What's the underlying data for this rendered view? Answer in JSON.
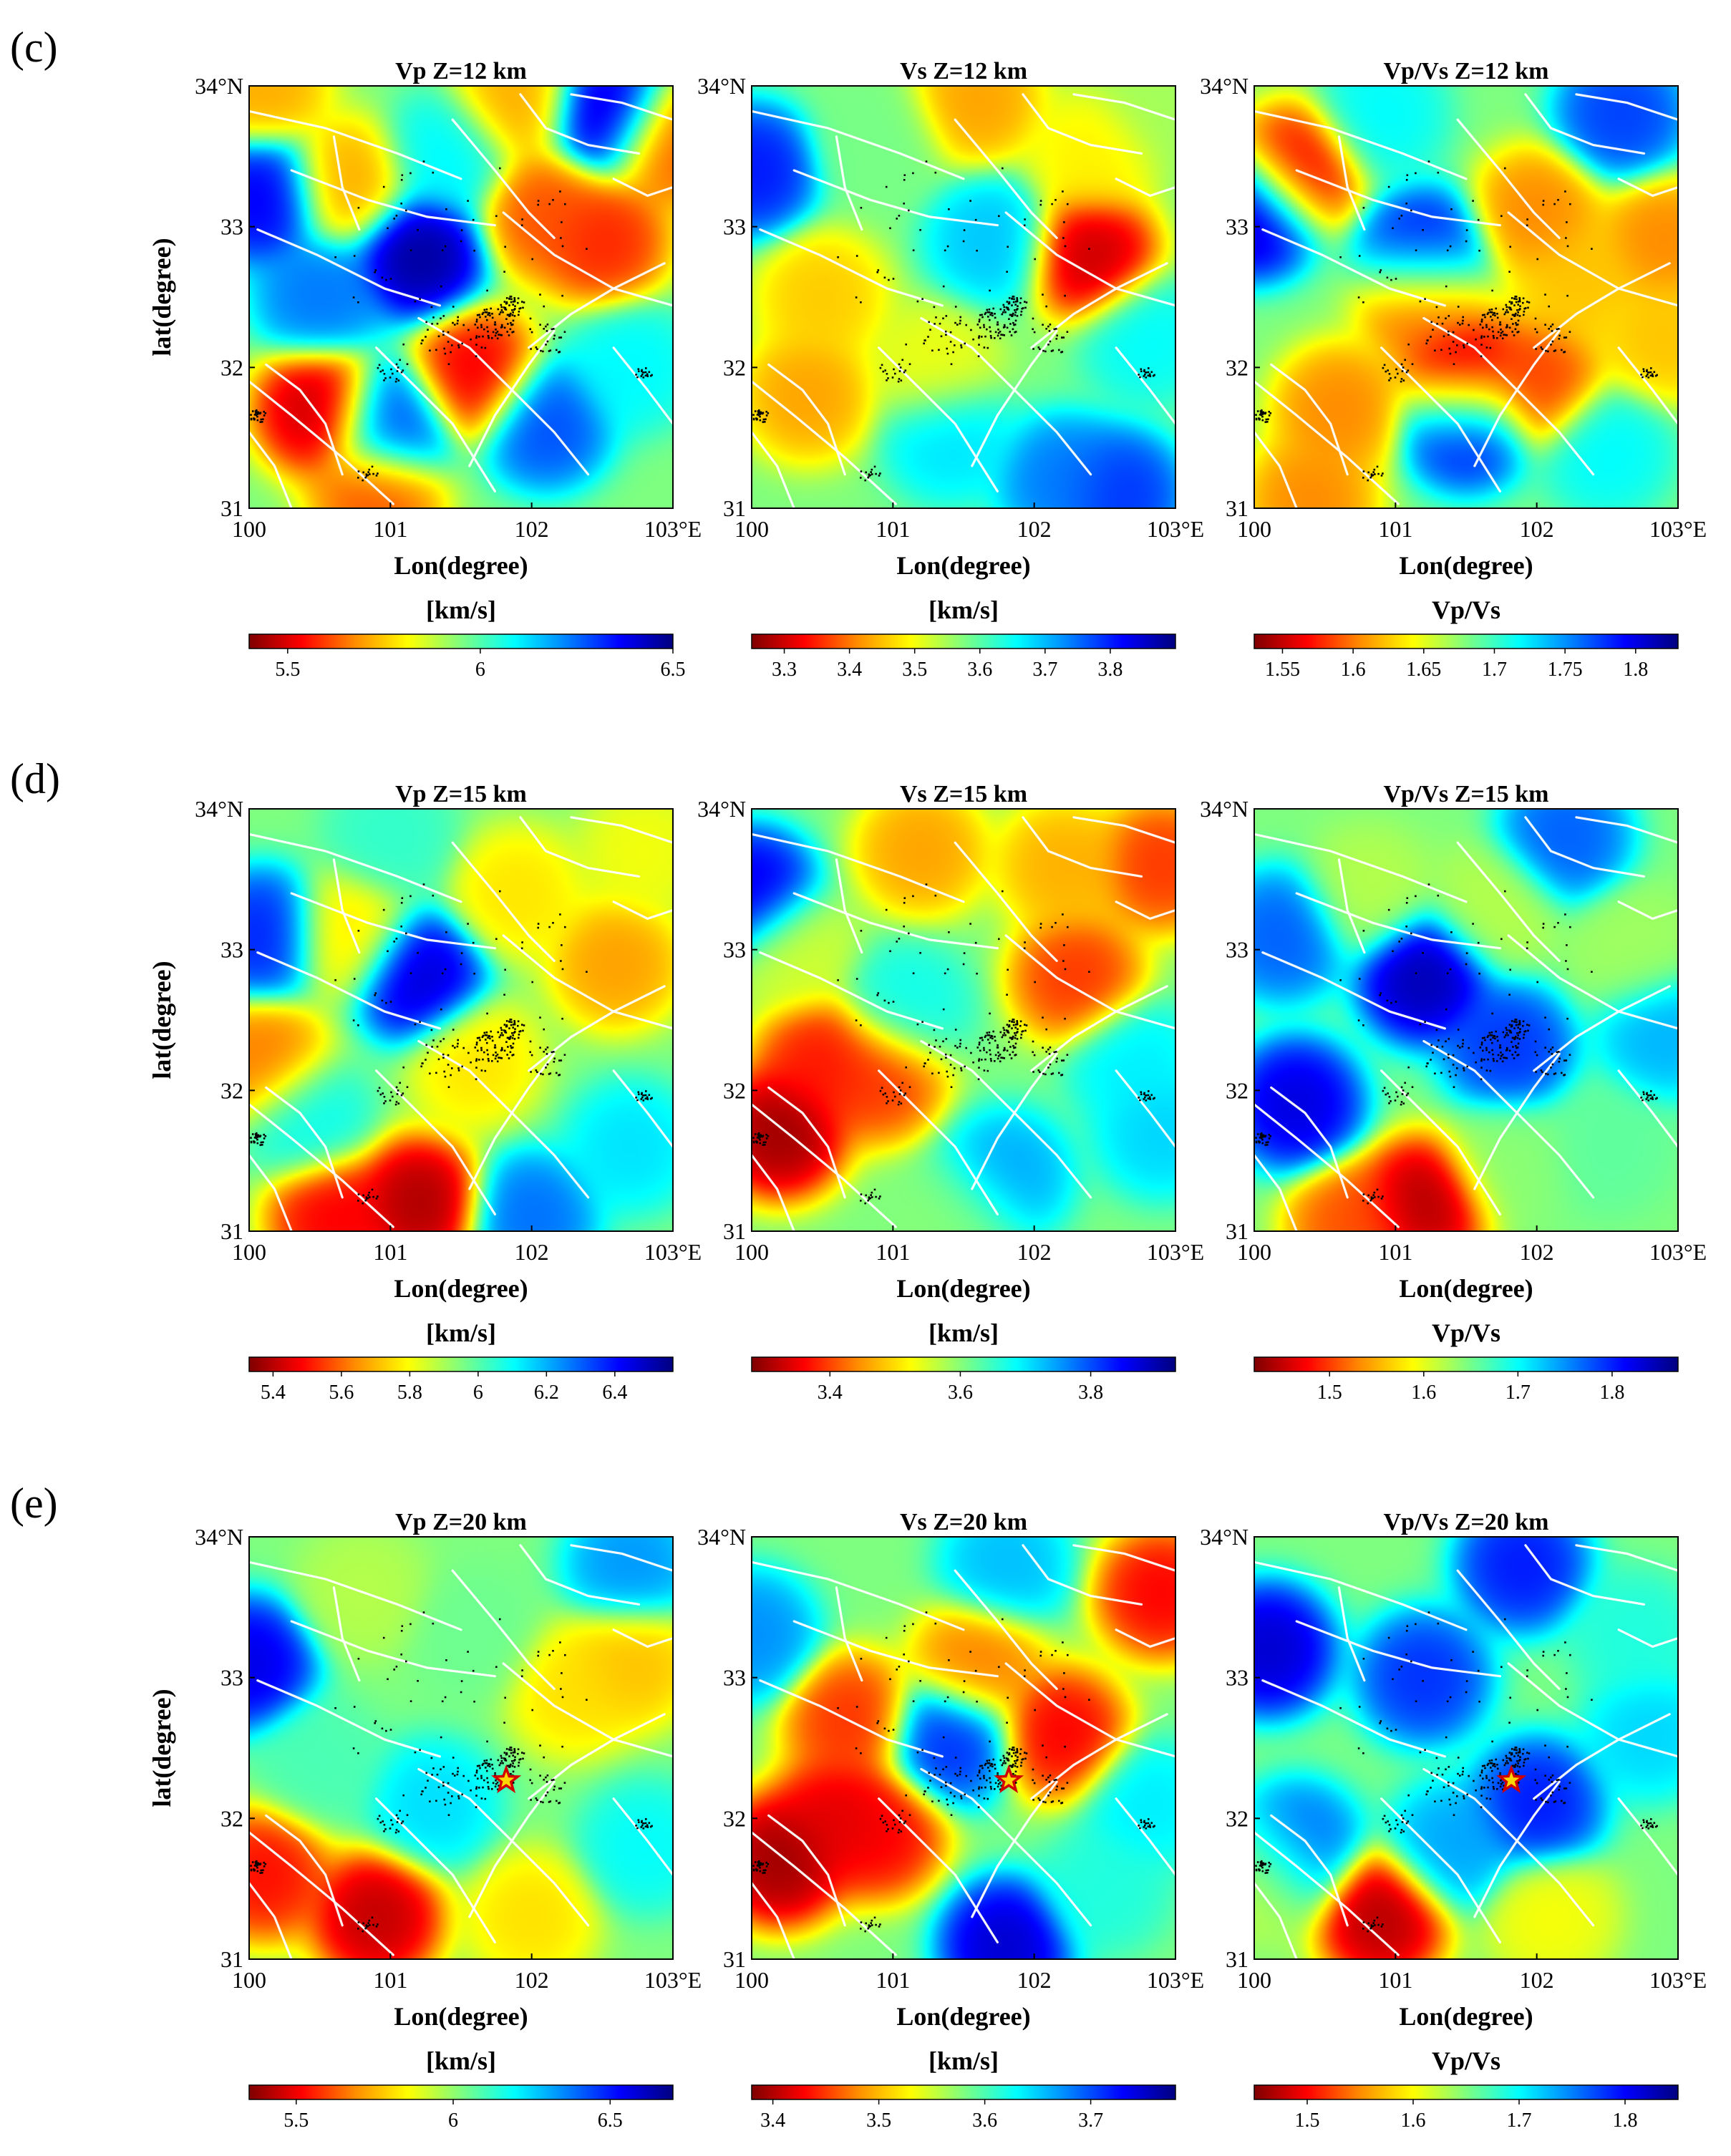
{
  "figure": {
    "panel_letters": [
      "(c)",
      "(d)",
      "(e)"
    ]
  },
  "colors": {
    "fault_lines": "#ffffff",
    "events": "#000000",
    "star_fill": "#ffd700",
    "star_stroke": "#d10000",
    "colormap": [
      "#7f0000",
      "#ff0000",
      "#ff8c00",
      "#ffff00",
      "#7fff7f",
      "#00ffff",
      "#0080ff",
      "#0000ff",
      "#00007f"
    ]
  },
  "chart_data": [
    {
      "type": "heatmap",
      "row": "c",
      "title": "Vp Z=12 km",
      "xlabel": "Lon(degree)",
      "ylabel": "lat(degree)",
      "xlim": [
        100,
        103
      ],
      "ylim": [
        31,
        34
      ],
      "xticks": [
        "100",
        "101",
        "102",
        "103°E"
      ],
      "yticks": [
        "31",
        "32",
        "33",
        "34°N"
      ],
      "colorbar": {
        "label": "[km/s]",
        "min": 5.4,
        "max": 6.5,
        "ticks": [
          "5.5",
          "6",
          "6.5"
        ],
        "tick_values": [
          5.5,
          6.0,
          6.5
        ]
      },
      "star": null,
      "anomalies": [
        {
          "lon": 101.2,
          "lat": 32.8,
          "value": 6.5
        },
        {
          "lon": 100.1,
          "lat": 33.2,
          "value": 6.4
        },
        {
          "lon": 102.5,
          "lat": 32.9,
          "value": 5.55
        },
        {
          "lon": 102.1,
          "lat": 33.1,
          "value": 5.6
        },
        {
          "lon": 101.6,
          "lat": 31.95,
          "value": 5.5
        },
        {
          "lon": 100.5,
          "lat": 31.7,
          "value": 5.45
        },
        {
          "lon": 102.55,
          "lat": 33.8,
          "value": 6.45
        },
        {
          "lon": 101.0,
          "lat": 31.6,
          "value": 6.3
        },
        {
          "lon": 102.1,
          "lat": 31.6,
          "value": 6.3
        },
        {
          "lon": 100.7,
          "lat": 33.3,
          "value": 5.7
        },
        {
          "lon": 102.95,
          "lat": 33.6,
          "value": 5.6
        },
        {
          "lon": 101.9,
          "lat": 33.9,
          "value": 5.7
        },
        {
          "lon": 100.1,
          "lat": 34.0,
          "value": 5.7
        },
        {
          "lon": 102.7,
          "lat": 32.0,
          "value": 6.1
        },
        {
          "lon": 100.5,
          "lat": 32.5,
          "value": 6.25
        },
        {
          "lon": 101.4,
          "lat": 33.5,
          "value": 6.1
        },
        {
          "lon": 100.9,
          "lat": 31.1,
          "value": 5.6
        }
      ]
    },
    {
      "type": "heatmap",
      "row": "c",
      "title": "Vs Z=12 km",
      "xlabel": "Lon(degree)",
      "ylabel": "",
      "xlim": [
        100,
        103
      ],
      "ylim": [
        31,
        34
      ],
      "xticks": [
        "100",
        "101",
        "102",
        "103°E"
      ],
      "yticks": [
        "31",
        "32",
        "33",
        "34°N"
      ],
      "colorbar": {
        "label": "[km/s]",
        "min": 3.25,
        "max": 3.9,
        "ticks": [
          "3.3",
          "3.4",
          "3.5",
          "3.6",
          "3.7",
          "3.8"
        ],
        "tick_values": [
          3.3,
          3.4,
          3.5,
          3.6,
          3.7,
          3.8
        ]
      },
      "star": null,
      "anomalies": [
        {
          "lon": 102.4,
          "lat": 32.8,
          "value": 3.28
        },
        {
          "lon": 100.0,
          "lat": 33.4,
          "value": 3.82
        },
        {
          "lon": 100.4,
          "lat": 31.8,
          "value": 3.42
        },
        {
          "lon": 100.5,
          "lat": 32.5,
          "value": 3.45
        },
        {
          "lon": 101.3,
          "lat": 32.0,
          "value": 3.5
        },
        {
          "lon": 101.6,
          "lat": 33.9,
          "value": 3.42
        },
        {
          "lon": 102.4,
          "lat": 33.5,
          "value": 3.48
        },
        {
          "lon": 101.7,
          "lat": 32.9,
          "value": 3.7
        },
        {
          "lon": 102.2,
          "lat": 31.2,
          "value": 3.75
        },
        {
          "lon": 101.4,
          "lat": 31.5,
          "value": 3.68
        },
        {
          "lon": 102.8,
          "lat": 32.2,
          "value": 3.66
        },
        {
          "lon": 102.6,
          "lat": 31.1,
          "value": 3.8
        },
        {
          "lon": 100.9,
          "lat": 33.6,
          "value": 3.58
        },
        {
          "lon": 102.9,
          "lat": 33.9,
          "value": 3.55
        }
      ]
    },
    {
      "type": "heatmap",
      "row": "c",
      "title": "Vp/Vs Z=12 km",
      "xlabel": "Lon(degree)",
      "ylabel": "",
      "xlim": [
        100,
        103
      ],
      "ylim": [
        31,
        34
      ],
      "xticks": [
        "100",
        "101",
        "102",
        "103°E"
      ],
      "yticks": [
        "31",
        "32",
        "33",
        "34°N"
      ],
      "colorbar": {
        "label": "Vp/Vs",
        "min": 1.53,
        "max": 1.83,
        "ticks": [
          "1.55",
          "1.6",
          "1.65",
          "1.7",
          "1.75",
          "1.8"
        ],
        "tick_values": [
          1.55,
          1.6,
          1.65,
          1.7,
          1.75,
          1.8
        ]
      },
      "star": null,
      "anomalies": [
        {
          "lon": 100.0,
          "lat": 33.1,
          "value": 1.82
        },
        {
          "lon": 101.2,
          "lat": 32.8,
          "value": 1.8
        },
        {
          "lon": 101.5,
          "lat": 31.6,
          "value": 1.8
        },
        {
          "lon": 102.6,
          "lat": 33.8,
          "value": 1.78
        },
        {
          "lon": 100.3,
          "lat": 33.4,
          "value": 1.56
        },
        {
          "lon": 101.5,
          "lat": 31.9,
          "value": 1.54
        },
        {
          "lon": 101.2,
          "lat": 32.5,
          "value": 1.58
        },
        {
          "lon": 102.0,
          "lat": 33.1,
          "value": 1.6
        },
        {
          "lon": 102.9,
          "lat": 32.9,
          "value": 1.6
        },
        {
          "lon": 102.0,
          "lat": 31.9,
          "value": 1.58
        },
        {
          "lon": 100.6,
          "lat": 31.7,
          "value": 1.6
        },
        {
          "lon": 100.4,
          "lat": 31.05,
          "value": 1.6
        },
        {
          "lon": 102.9,
          "lat": 32.2,
          "value": 1.62
        },
        {
          "lon": 102.3,
          "lat": 32.6,
          "value": 1.62
        },
        {
          "lon": 100.9,
          "lat": 33.8,
          "value": 1.72
        },
        {
          "lon": 102.5,
          "lat": 31.4,
          "value": 1.72
        }
      ]
    },
    {
      "type": "heatmap",
      "row": "d",
      "title": "Vp Z=15 km",
      "xlabel": "Lon(degree)",
      "ylabel": "lat(degree)",
      "xlim": [
        100,
        103
      ],
      "ylim": [
        31,
        34
      ],
      "xticks": [
        "100",
        "101",
        "102",
        "103°E"
      ],
      "yticks": [
        "31",
        "32",
        "33",
        "34°N"
      ],
      "colorbar": {
        "label": "[km/s]",
        "min": 5.33,
        "max": 6.57,
        "ticks": [
          "5.4",
          "5.6",
          "5.8",
          "6",
          "6.2",
          "6.4"
        ],
        "tick_values": [
          5.4,
          5.6,
          5.8,
          6.0,
          6.2,
          6.4
        ]
      },
      "star": null,
      "anomalies": [
        {
          "lon": 101.2,
          "lat": 32.8,
          "value": 6.5
        },
        {
          "lon": 100.1,
          "lat": 33.1,
          "value": 6.4
        },
        {
          "lon": 101.2,
          "lat": 31.2,
          "value": 5.35
        },
        {
          "lon": 100.6,
          "lat": 31.1,
          "value": 5.45
        },
        {
          "lon": 100.1,
          "lat": 32.2,
          "value": 5.6
        },
        {
          "lon": 102.6,
          "lat": 32.9,
          "value": 5.65
        },
        {
          "lon": 101.6,
          "lat": 32.2,
          "value": 5.75
        },
        {
          "lon": 101.9,
          "lat": 33.4,
          "value": 5.75
        },
        {
          "lon": 102.0,
          "lat": 31.1,
          "value": 6.3
        },
        {
          "lon": 100.4,
          "lat": 31.8,
          "value": 6.1
        },
        {
          "lon": 102.7,
          "lat": 31.6,
          "value": 6.15
        },
        {
          "lon": 101.0,
          "lat": 33.8,
          "value": 6.05
        },
        {
          "lon": 102.8,
          "lat": 33.7,
          "value": 5.8
        },
        {
          "lon": 100.7,
          "lat": 33.1,
          "value": 5.75
        }
      ]
    },
    {
      "type": "heatmap",
      "row": "d",
      "title": "Vs Z=15 km",
      "xlabel": "Lon(degree)",
      "ylabel": "",
      "xlim": [
        100,
        103
      ],
      "ylim": [
        31,
        34
      ],
      "xticks": [
        "100",
        "101",
        "102",
        "103°E"
      ],
      "yticks": [
        "31",
        "32",
        "33",
        "34°N"
      ],
      "colorbar": {
        "label": "[km/s]",
        "min": 3.28,
        "max": 3.93,
        "ticks": [
          "3.4",
          "3.6",
          "3.8"
        ],
        "tick_values": [
          3.4,
          3.6,
          3.8
        ]
      },
      "star": null,
      "anomalies": [
        {
          "lon": 100.2,
          "lat": 31.7,
          "value": 3.28
        },
        {
          "lon": 100.5,
          "lat": 32.2,
          "value": 3.36
        },
        {
          "lon": 100.9,
          "lat": 32.1,
          "value": 3.38
        },
        {
          "lon": 102.3,
          "lat": 32.8,
          "value": 3.38
        },
        {
          "lon": 102.9,
          "lat": 33.6,
          "value": 3.38
        },
        {
          "lon": 101.2,
          "lat": 33.7,
          "value": 3.45
        },
        {
          "lon": 102.2,
          "lat": 33.6,
          "value": 3.46
        },
        {
          "lon": 100.0,
          "lat": 33.4,
          "value": 3.88
        },
        {
          "lon": 101.8,
          "lat": 31.4,
          "value": 3.75
        },
        {
          "lon": 102.9,
          "lat": 31.7,
          "value": 3.72
        },
        {
          "lon": 101.1,
          "lat": 32.6,
          "value": 3.68
        },
        {
          "lon": 102.7,
          "lat": 32.2,
          "value": 3.7
        },
        {
          "lon": 101.5,
          "lat": 31.1,
          "value": 3.6
        },
        {
          "lon": 100.3,
          "lat": 33.0,
          "value": 3.55
        }
      ]
    },
    {
      "type": "heatmap",
      "row": "d",
      "title": "Vp/Vs Z=15 km",
      "xlabel": "Lon(degree)",
      "ylabel": "",
      "xlim": [
        100,
        103
      ],
      "ylim": [
        31,
        34
      ],
      "xticks": [
        "100",
        "101",
        "102",
        "103°E"
      ],
      "yticks": [
        "31",
        "32",
        "33",
        "34°N"
      ],
      "colorbar": {
        "label": "Vp/Vs",
        "min": 1.42,
        "max": 1.87,
        "ticks": [
          "1.5",
          "1.6",
          "1.7",
          "1.8"
        ],
        "tick_values": [
          1.5,
          1.6,
          1.7,
          1.8
        ]
      },
      "star": null,
      "anomalies": [
        {
          "lon": 101.2,
          "lat": 31.2,
          "value": 1.43
        },
        {
          "lon": 100.7,
          "lat": 31.05,
          "value": 1.5
        },
        {
          "lon": 101.2,
          "lat": 32.8,
          "value": 1.86
        },
        {
          "lon": 100.3,
          "lat": 31.9,
          "value": 1.84
        },
        {
          "lon": 100.2,
          "lat": 33.1,
          "value": 1.78
        },
        {
          "lon": 101.8,
          "lat": 32.3,
          "value": 1.8
        },
        {
          "lon": 102.2,
          "lat": 33.8,
          "value": 1.78
        },
        {
          "lon": 100.8,
          "lat": 33.4,
          "value": 1.62
        },
        {
          "lon": 101.7,
          "lat": 33.3,
          "value": 1.62
        },
        {
          "lon": 102.7,
          "lat": 33.0,
          "value": 1.63
        },
        {
          "lon": 101.8,
          "lat": 31.5,
          "value": 1.64
        },
        {
          "lon": 102.5,
          "lat": 31.6,
          "value": 1.66
        },
        {
          "lon": 102.9,
          "lat": 32.4,
          "value": 1.74
        }
      ]
    },
    {
      "type": "heatmap",
      "row": "e",
      "title": "Vp Z=20 km",
      "xlabel": "Lon(degree)",
      "ylabel": "lat(degree)",
      "xlim": [
        100,
        103
      ],
      "ylim": [
        31,
        34
      ],
      "xticks": [
        "100",
        "101",
        "102",
        "103°E"
      ],
      "yticks": [
        "31",
        "32",
        "33",
        "34°N"
      ],
      "colorbar": {
        "label": "[km/s]",
        "min": 5.35,
        "max": 6.7,
        "ticks": [
          "5.5",
          "6",
          "6.5"
        ],
        "tick_values": [
          5.5,
          6.0,
          6.5
        ]
      },
      "star": {
        "lon": 101.82,
        "lat": 32.27,
        "label": ""
      },
      "anomalies": [
        {
          "lon": 100.0,
          "lat": 33.1,
          "value": 6.6
        },
        {
          "lon": 100.9,
          "lat": 31.3,
          "value": 5.4
        },
        {
          "lon": 100.1,
          "lat": 31.6,
          "value": 5.5
        },
        {
          "lon": 102.7,
          "lat": 33.1,
          "value": 5.75
        },
        {
          "lon": 102.3,
          "lat": 32.9,
          "value": 5.8
        },
        {
          "lon": 102.0,
          "lat": 31.3,
          "value": 5.8
        },
        {
          "lon": 102.7,
          "lat": 33.8,
          "value": 6.35
        },
        {
          "lon": 101.3,
          "lat": 32.1,
          "value": 6.25
        },
        {
          "lon": 100.8,
          "lat": 33.6,
          "value": 5.95
        },
        {
          "lon": 102.8,
          "lat": 31.8,
          "value": 6.2
        },
        {
          "lon": 100.5,
          "lat": 32.4,
          "value": 6.1
        },
        {
          "lon": 101.6,
          "lat": 33.3,
          "value": 6.05
        }
      ]
    },
    {
      "type": "heatmap",
      "row": "e",
      "title": "Vs Z=20 km",
      "xlabel": "Lon(degree)",
      "ylabel": "",
      "xlim": [
        100,
        103
      ],
      "ylim": [
        31,
        34
      ],
      "xticks": [
        "100",
        "101",
        "102",
        "103°E"
      ],
      "yticks": [
        "31",
        "32",
        "33",
        "34°N"
      ],
      "colorbar": {
        "label": "[km/s]",
        "min": 3.38,
        "max": 3.78,
        "ticks": [
          "3.4",
          "3.5",
          "3.6",
          "3.7"
        ],
        "tick_values": [
          3.4,
          3.5,
          3.6,
          3.7
        ]
      },
      "star": {
        "lon": 101.82,
        "lat": 32.27,
        "label": ""
      },
      "anomalies": [
        {
          "lon": 100.2,
          "lat": 31.7,
          "value": 3.38
        },
        {
          "lon": 100.6,
          "lat": 32.0,
          "value": 3.41
        },
        {
          "lon": 100.9,
          "lat": 31.9,
          "value": 3.42
        },
        {
          "lon": 100.7,
          "lat": 32.7,
          "value": 3.44
        },
        {
          "lon": 102.2,
          "lat": 32.6,
          "value": 3.42
        },
        {
          "lon": 102.9,
          "lat": 33.6,
          "value": 3.42
        },
        {
          "lon": 101.6,
          "lat": 33.1,
          "value": 3.47
        },
        {
          "lon": 101.4,
          "lat": 32.55,
          "value": 3.72
        },
        {
          "lon": 101.8,
          "lat": 31.1,
          "value": 3.76
        },
        {
          "lon": 100.0,
          "lat": 33.3,
          "value": 3.68
        },
        {
          "lon": 101.8,
          "lat": 33.8,
          "value": 3.66
        },
        {
          "lon": 102.8,
          "lat": 32.1,
          "value": 3.64
        },
        {
          "lon": 102.5,
          "lat": 31.5,
          "value": 3.62
        }
      ]
    },
    {
      "type": "heatmap",
      "row": "e",
      "title": "Vp/Vs Z=20 km",
      "xlabel": "Lon(degree)",
      "ylabel": "",
      "xlim": [
        100,
        103
      ],
      "ylim": [
        31,
        34
      ],
      "xticks": [
        "100",
        "101",
        "102",
        "103°E"
      ],
      "yticks": [
        "31",
        "32",
        "33",
        "34°N"
      ],
      "colorbar": {
        "label": "Vp/Vs",
        "min": 1.45,
        "max": 1.85,
        "ticks": [
          "1.5",
          "1.6",
          "1.7",
          "1.8"
        ],
        "tick_values": [
          1.5,
          1.6,
          1.7,
          1.8
        ]
      },
      "star": {
        "lon": 101.82,
        "lat": 32.27,
        "label": ""
      },
      "anomalies": [
        {
          "lon": 100.9,
          "lat": 31.3,
          "value": 1.46
        },
        {
          "lon": 100.1,
          "lat": 33.2,
          "value": 1.83
        },
        {
          "lon": 102.0,
          "lat": 32.1,
          "value": 1.8
        },
        {
          "lon": 101.2,
          "lat": 33.0,
          "value": 1.79
        },
        {
          "lon": 101.9,
          "lat": 33.8,
          "value": 1.8
        },
        {
          "lon": 100.3,
          "lat": 31.8,
          "value": 1.77
        },
        {
          "lon": 102.1,
          "lat": 31.3,
          "value": 1.6
        },
        {
          "lon": 100.1,
          "lat": 31.6,
          "value": 1.62
        },
        {
          "lon": 102.8,
          "lat": 32.6,
          "value": 1.72
        },
        {
          "lon": 101.4,
          "lat": 31.8,
          "value": 1.74
        },
        {
          "lon": 102.7,
          "lat": 33.3,
          "value": 1.69
        }
      ]
    }
  ]
}
